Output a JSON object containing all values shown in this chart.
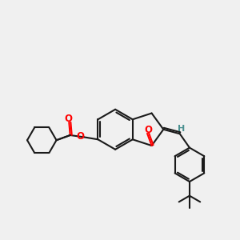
{
  "background_color": "#f0f0f0",
  "bond_color": "#1a1a1a",
  "oxygen_color": "#ff0000",
  "h_color": "#4a9090",
  "line_width": 1.5,
  "figsize": [
    3.0,
    3.0
  ],
  "dpi": 100,
  "xlim": [
    0,
    10
  ],
  "ylim": [
    0,
    10
  ]
}
